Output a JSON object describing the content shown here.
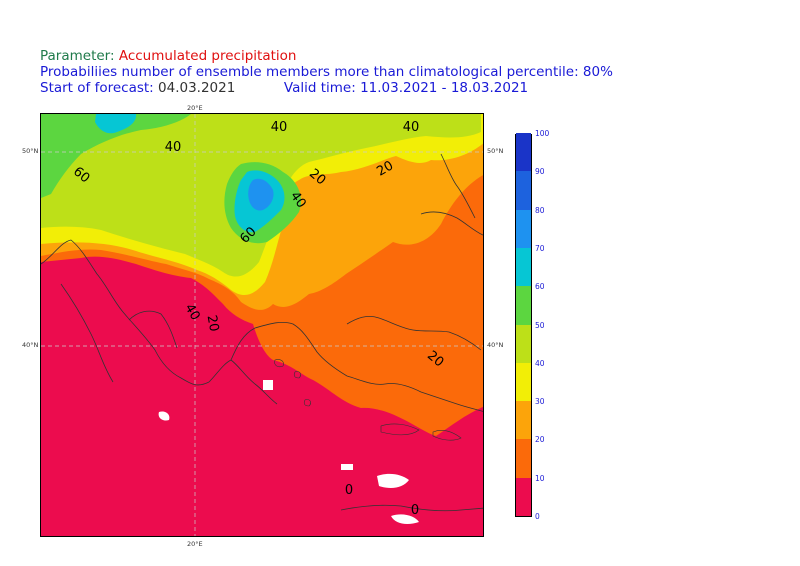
{
  "header": {
    "param_key": "Parameter:",
    "param_value": "Accumulated precipitation",
    "line2": "Probabiliies number of ensemble members more than climatological percentile: 80%",
    "start_key": "Start of forecast:",
    "start_value": "04.03.2021",
    "valid_key": "Valid time:",
    "valid_value": "11.03.2021 - 18.03.2021"
  },
  "map": {
    "lon_label_top": "20°E",
    "lon_label_bottom": "20°E",
    "lat_50_left": "50°N",
    "lat_50_right": "50°N",
    "lat_40_left": "40°N",
    "lat_40_right": "40°N",
    "contour_labels": [
      {
        "id": "c40-top-a",
        "text": "40"
      },
      {
        "id": "c40-top-b",
        "text": "40"
      },
      {
        "id": "c40-upper-left",
        "text": "40"
      },
      {
        "id": "c60-left",
        "text": "60"
      },
      {
        "id": "c20-centre",
        "text": "20"
      },
      {
        "id": "c20-upper-right",
        "text": "20"
      },
      {
        "id": "c40-centre",
        "text": "40"
      },
      {
        "id": "c60-centre",
        "text": "60"
      },
      {
        "id": "c40-balkan",
        "text": "40"
      },
      {
        "id": "c20-balkan",
        "text": "20"
      },
      {
        "id": "c20-east",
        "text": "20"
      },
      {
        "id": "c0-south",
        "text": "0"
      },
      {
        "id": "c0-southeast",
        "text": "0"
      }
    ]
  },
  "colorbar": {
    "levels": [
      "0",
      "10",
      "20",
      "30",
      "40",
      "50",
      "60",
      "70",
      "80",
      "90",
      "100"
    ],
    "colors": [
      "#ec0c4e",
      "#fb6a0a",
      "#fca40a",
      "#f2ee06",
      "#bde018",
      "#5cd640",
      "#06c6d4",
      "#1e92f0",
      "#1d62de",
      "#1a34c8",
      "#7006e8"
    ]
  }
}
